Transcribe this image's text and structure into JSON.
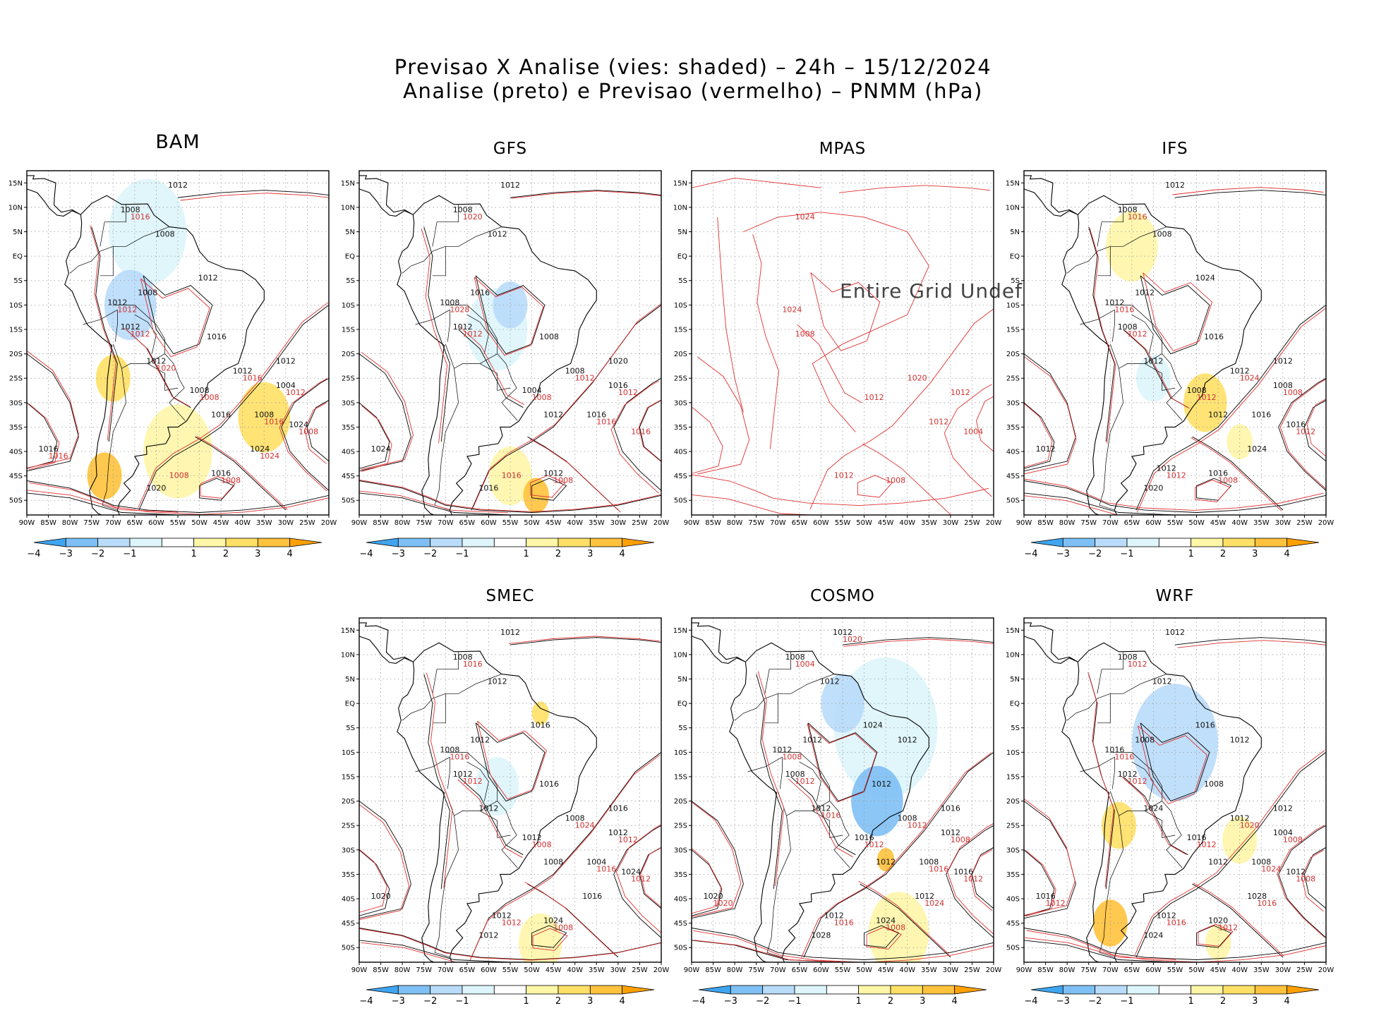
{
  "figure": {
    "title_line1": "Previsao X Analise (vies: shaded) – 24h – 15/12/2024",
    "title_line2": "Analise (preto) e Previsao (vermelho) – PNMM (hPa)"
  },
  "axes": {
    "lat_labels": [
      "15N",
      "10N",
      "5N",
      "EQ",
      "5S",
      "10S",
      "15S",
      "20S",
      "25S",
      "30S",
      "35S",
      "40S",
      "45S",
      "50S"
    ],
    "lon_labels": [
      "90W",
      "85W",
      "80W",
      "75W",
      "70W",
      "65W",
      "60W",
      "55W",
      "50W",
      "45W",
      "40W",
      "35W",
      "30W",
      "25W",
      "20W"
    ]
  },
  "colorbar": {
    "labels": [
      "−4",
      "−3",
      "−2",
      "−1",
      "1",
      "2",
      "3",
      "4"
    ],
    "colors": [
      "#3fa5f0",
      "#7ec0f5",
      "#b9dcfa",
      "#ddf5fb",
      "#ffffff",
      "#fff6a8",
      "#ffe066",
      "#ffc23c",
      "#ffa000"
    ]
  },
  "colors": {
    "analysis_contour": "#000000",
    "forecast_contour": "#e03030",
    "land_outline": "#000000",
    "grid": "#9a9a9a"
  },
  "panels": [
    {
      "name": "BAM",
      "title": "BAM",
      "big": true,
      "has_colorbar": true,
      "undef_text": "",
      "labels_black": [
        "1012",
        "1008",
        "1008",
        "1008",
        "1012",
        "1012",
        "1016",
        "1012",
        "1008",
        "1016",
        "1008",
        "1004",
        "1012",
        "1016",
        "1016",
        "1020",
        "1024",
        "1024",
        "1012",
        "1012"
      ],
      "labels_red": [
        "1012",
        "1008",
        "1012",
        "1008",
        "1008",
        "1008",
        "1016",
        "1012",
        "1016",
        "1016",
        "1016",
        "1024",
        "1020"
      ],
      "bias": [
        {
          "c": "#ddf5fb",
          "lon": -62,
          "lat": 5,
          "r": 9
        },
        {
          "c": "#b9dcfa",
          "lon": -66,
          "lat": -10,
          "r": 6
        },
        {
          "c": "#ffe066",
          "lon": -70,
          "lat": -25,
          "r": 4
        },
        {
          "c": "#fff6a8",
          "lon": -55,
          "lat": -40,
          "r": 8
        },
        {
          "c": "#ffe066",
          "lon": -35,
          "lat": -33,
          "r": 6
        },
        {
          "c": "#ffc23c",
          "lon": -72,
          "lat": -45,
          "r": 4
        }
      ]
    },
    {
      "name": "GFS",
      "title": "GFS",
      "big": false,
      "has_colorbar": true,
      "undef_text": "",
      "labels_black": [
        "1012",
        "1008",
        "1012",
        "1016",
        "1008",
        "1012",
        "1008",
        "1008",
        "1004",
        "1012",
        "1016",
        "1016",
        "1020",
        "1024",
        "1012",
        "1016"
      ],
      "labels_red": [
        "1012",
        "1008",
        "1012",
        "1008",
        "1016",
        "1016",
        "1020",
        "1028",
        "1012",
        "1016"
      ],
      "bias": [
        {
          "c": "#ddf5fb",
          "lon": -58,
          "lat": -15,
          "r": 7
        },
        {
          "c": "#b9dcfa",
          "lon": -55,
          "lat": -10,
          "r": 4
        },
        {
          "c": "#fff6a8",
          "lon": -55,
          "lat": -45,
          "r": 5
        },
        {
          "c": "#ffc23c",
          "lon": -49,
          "lat": -49,
          "r": 3
        }
      ]
    },
    {
      "name": "MPAS",
      "title": "MPAS",
      "big": false,
      "has_colorbar": false,
      "undef_text": "Entire Grid Undef",
      "labels_black": [],
      "labels_red": [
        "1008",
        "1012",
        "1012",
        "1008",
        "1004",
        "1012",
        "1024",
        "1024",
        "1020",
        "1012"
      ],
      "bias": []
    },
    {
      "name": "IFS",
      "title": "IFS",
      "big": false,
      "has_colorbar": true,
      "undef_text": "",
      "labels_black": [
        "1012",
        "1008",
        "1008",
        "1012",
        "1012",
        "1008",
        "1016",
        "1012",
        "1008",
        "1012",
        "1016",
        "1008",
        "1012",
        "1012",
        "1016",
        "1020",
        "1024",
        "1016",
        "1024",
        "1012",
        "1012"
      ],
      "labels_red": [
        "1012",
        "1012",
        "1008",
        "1008",
        "1012",
        "1012",
        "1016",
        "1016",
        "1024"
      ],
      "bias": [
        {
          "c": "#fff6a8",
          "lon": -65,
          "lat": 2,
          "r": 6
        },
        {
          "c": "#ffe066",
          "lon": -48,
          "lat": -30,
          "r": 5
        },
        {
          "c": "#ddf5fb",
          "lon": -60,
          "lat": -25,
          "r": 4
        },
        {
          "c": "#fff6a8",
          "lon": -40,
          "lat": -38,
          "r": 3
        }
      ]
    },
    {
      "name": "SMEC",
      "title": "SMEC",
      "big": false,
      "has_colorbar": true,
      "undef_text": "",
      "labels_black": [
        "1012",
        "1008",
        "1012",
        "1012",
        "1008",
        "1012",
        "1016",
        "1008",
        "1012",
        "1008",
        "1004",
        "1012",
        "1016",
        "1020",
        "1024",
        "1012",
        "1016",
        "1024",
        "1016",
        "1012",
        "1012"
      ],
      "labels_red": [
        "1012",
        "1008",
        "1012",
        "1008",
        "1012",
        "1012",
        "1016",
        "1016",
        "1024",
        "1016"
      ],
      "bias": [
        {
          "c": "#ddf5fb",
          "lon": -58,
          "lat": -17,
          "r": 5
        },
        {
          "c": "#fff6a8",
          "lon": -48,
          "lat": -49,
          "r": 5
        },
        {
          "c": "#ffe066",
          "lon": -48,
          "lat": -2,
          "r": 2
        }
      ]
    },
    {
      "name": "COSMO",
      "title": "COSMO",
      "big": false,
      "has_colorbar": true,
      "undef_text": "",
      "labels_black": [
        "1012",
        "1008",
        "1012",
        "1012",
        "1012",
        "1008",
        "1012",
        "1008",
        "1016",
        "1012",
        "1008",
        "1012",
        "1016",
        "1020",
        "1024",
        "1028",
        "1012",
        "1016",
        "1024",
        "1012",
        "1012",
        "1012"
      ],
      "labels_red": [
        "1012",
        "1012",
        "1008",
        "1008",
        "1012",
        "1016",
        "1004",
        "1008",
        "1012",
        "1016",
        "1020",
        "1024",
        "1016",
        "1020"
      ],
      "bias": [
        {
          "c": "#ddf5fb",
          "lon": -45,
          "lat": -5,
          "r": 12
        },
        {
          "c": "#7ec0f5",
          "lon": -47,
          "lat": -20,
          "r": 6
        },
        {
          "c": "#b9dcfa",
          "lon": -55,
          "lat": 0,
          "r": 5
        },
        {
          "c": "#fff6a8",
          "lon": -42,
          "lat": -47,
          "r": 7
        },
        {
          "c": "#ffc23c",
          "lon": -45,
          "lat": -32,
          "r": 2
        }
      ]
    },
    {
      "name": "WRF",
      "title": "WRF",
      "big": false,
      "has_colorbar": true,
      "undef_text": "",
      "labels_black": [
        "1012",
        "1008",
        "1012",
        "1008",
        "1016",
        "1012",
        "1008",
        "1012",
        "1016",
        "1012",
        "1008",
        "1004",
        "1012",
        "1016",
        "1020",
        "1024",
        "1028",
        "1012",
        "1016",
        "1024",
        "1012",
        "1012"
      ],
      "labels_red": [
        "1012",
        "1012",
        "1008",
        "1012",
        "1008",
        "1016",
        "1012",
        "1016",
        "1020",
        "1024",
        "1012",
        "1016"
      ],
      "bias": [
        {
          "c": "#b9dcfa",
          "lon": -55,
          "lat": -8,
          "r": 10
        },
        {
          "c": "#ffe066",
          "lon": -68,
          "lat": -25,
          "r": 4
        },
        {
          "c": "#ffc23c",
          "lon": -70,
          "lat": -45,
          "r": 4
        },
        {
          "c": "#fff6a8",
          "lon": -40,
          "lat": -28,
          "r": 4
        },
        {
          "c": "#fff6a8",
          "lon": -45,
          "lat": -49,
          "r": 3
        }
      ]
    }
  ]
}
